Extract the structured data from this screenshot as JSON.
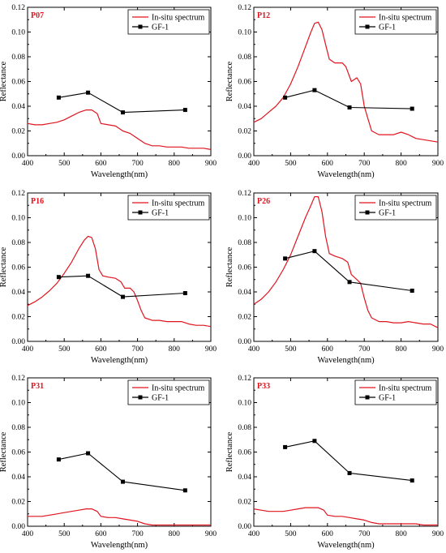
{
  "chart_data": [
    {
      "type": "line",
      "panel_label": "P07",
      "xlabel": "Wavelength(nm)",
      "ylabel": "Reflectance",
      "xlim": [
        400,
        900
      ],
      "ylim": [
        0,
        0.12
      ],
      "xticks": [
        400,
        500,
        600,
        700,
        800,
        900
      ],
      "yticks": [
        "0.00",
        "0.02",
        "0.04",
        "0.06",
        "0.08",
        "0.10",
        "0.12"
      ],
      "legend_position": "top-right",
      "series": [
        {
          "name": "In-situ spectrum",
          "color": "#e0141e",
          "marker": "none",
          "x": [
            400,
            420,
            440,
            460,
            480,
            500,
            520,
            540,
            560,
            575,
            590,
            600,
            620,
            640,
            660,
            680,
            700,
            720,
            740,
            760,
            780,
            800,
            820,
            840,
            860,
            880,
            900
          ],
          "y": [
            0.026,
            0.025,
            0.025,
            0.026,
            0.027,
            0.029,
            0.032,
            0.035,
            0.037,
            0.037,
            0.034,
            0.026,
            0.025,
            0.024,
            0.02,
            0.018,
            0.014,
            0.01,
            0.008,
            0.008,
            0.007,
            0.007,
            0.007,
            0.006,
            0.006,
            0.006,
            0.005
          ]
        },
        {
          "name": "GF-1",
          "color": "#000000",
          "marker": "square",
          "x": [
            485,
            565,
            660,
            830
          ],
          "y": [
            0.047,
            0.051,
            0.035,
            0.037
          ]
        }
      ]
    },
    {
      "type": "line",
      "panel_label": "P12",
      "xlabel": "Wavelength(nm)",
      "ylabel": "Reflectance",
      "xlim": [
        400,
        900
      ],
      "ylim": [
        0,
        0.12
      ],
      "xticks": [
        400,
        500,
        600,
        700,
        800,
        900
      ],
      "yticks": [
        "0.00",
        "0.02",
        "0.04",
        "0.06",
        "0.08",
        "0.10",
        "0.12"
      ],
      "legend_position": "top-right",
      "series": [
        {
          "name": "In-situ spectrum",
          "color": "#e0141e",
          "marker": "none",
          "x": [
            400,
            420,
            440,
            460,
            480,
            500,
            520,
            540,
            555,
            565,
            575,
            585,
            595,
            605,
            620,
            640,
            650,
            665,
            680,
            690,
            700,
            710,
            720,
            740,
            760,
            780,
            800,
            820,
            840,
            860,
            880,
            900
          ],
          "y": [
            0.027,
            0.03,
            0.035,
            0.04,
            0.047,
            0.058,
            0.072,
            0.088,
            0.1,
            0.107,
            0.108,
            0.102,
            0.09,
            0.078,
            0.075,
            0.075,
            0.072,
            0.06,
            0.063,
            0.058,
            0.04,
            0.03,
            0.02,
            0.017,
            0.017,
            0.017,
            0.019,
            0.017,
            0.014,
            0.013,
            0.012,
            0.011
          ]
        },
        {
          "name": "GF-1",
          "color": "#000000",
          "marker": "square",
          "x": [
            485,
            565,
            660,
            830
          ],
          "y": [
            0.047,
            0.053,
            0.039,
            0.038
          ]
        }
      ]
    },
    {
      "type": "line",
      "panel_label": "P16",
      "xlabel": "Wavelength(nm)",
      "ylabel": "Reflectance",
      "xlim": [
        400,
        900
      ],
      "ylim": [
        0,
        0.12
      ],
      "xticks": [
        400,
        500,
        600,
        700,
        800,
        900
      ],
      "yticks": [
        "0.00",
        "0.02",
        "0.04",
        "0.06",
        "0.08",
        "0.10",
        "0.12"
      ],
      "legend_position": "top-right",
      "series": [
        {
          "name": "In-situ spectrum",
          "color": "#e0141e",
          "marker": "none",
          "x": [
            400,
            420,
            440,
            460,
            480,
            500,
            520,
            540,
            555,
            565,
            575,
            585,
            595,
            605,
            620,
            640,
            655,
            665,
            680,
            690,
            700,
            710,
            720,
            740,
            760,
            780,
            800,
            820,
            840,
            860,
            880,
            900
          ],
          "y": [
            0.029,
            0.032,
            0.036,
            0.041,
            0.047,
            0.055,
            0.064,
            0.075,
            0.082,
            0.085,
            0.084,
            0.075,
            0.058,
            0.053,
            0.052,
            0.051,
            0.048,
            0.043,
            0.043,
            0.04,
            0.033,
            0.025,
            0.019,
            0.017,
            0.017,
            0.016,
            0.016,
            0.016,
            0.014,
            0.013,
            0.013,
            0.012
          ]
        },
        {
          "name": "GF-1",
          "color": "#000000",
          "marker": "square",
          "x": [
            485,
            565,
            660,
            830
          ],
          "y": [
            0.052,
            0.053,
            0.036,
            0.039
          ]
        }
      ]
    },
    {
      "type": "line",
      "panel_label": "P26",
      "xlabel": "Wavelength(nm)",
      "ylabel": "Reflectance",
      "xlim": [
        400,
        900
      ],
      "ylim": [
        0,
        0.12
      ],
      "xticks": [
        400,
        500,
        600,
        700,
        800,
        900
      ],
      "yticks": [
        "0.00",
        "0.02",
        "0.04",
        "0.06",
        "0.08",
        "0.10",
        "0.12"
      ],
      "legend_position": "top-right",
      "series": [
        {
          "name": "In-situ spectrum",
          "color": "#e0141e",
          "marker": "none",
          "x": [
            400,
            420,
            440,
            460,
            480,
            500,
            520,
            540,
            555,
            565,
            575,
            585,
            595,
            605,
            620,
            640,
            655,
            665,
            680,
            690,
            700,
            710,
            720,
            740,
            760,
            780,
            800,
            820,
            840,
            860,
            880,
            900
          ],
          "y": [
            0.03,
            0.034,
            0.04,
            0.048,
            0.058,
            0.07,
            0.085,
            0.1,
            0.11,
            0.117,
            0.117,
            0.105,
            0.085,
            0.071,
            0.069,
            0.067,
            0.064,
            0.054,
            0.05,
            0.047,
            0.035,
            0.025,
            0.019,
            0.016,
            0.016,
            0.015,
            0.015,
            0.016,
            0.015,
            0.014,
            0.014,
            0.011
          ]
        },
        {
          "name": "GF-1",
          "color": "#000000",
          "marker": "square",
          "x": [
            485,
            565,
            660,
            830
          ],
          "y": [
            0.067,
            0.073,
            0.048,
            0.041
          ]
        }
      ]
    },
    {
      "type": "line",
      "panel_label": "P31",
      "xlabel": "Wavelength(nm)",
      "ylabel": "Reflectance",
      "xlim": [
        400,
        900
      ],
      "ylim": [
        0,
        0.12
      ],
      "xticks": [
        400,
        500,
        600,
        700,
        800,
        900
      ],
      "yticks": [
        "0.00",
        "0.02",
        "0.04",
        "0.06",
        "0.08",
        "0.10",
        "0.12"
      ],
      "legend_position": "top-right",
      "series": [
        {
          "name": "In-situ spectrum",
          "color": "#e0141e",
          "marker": "none",
          "x": [
            400,
            420,
            440,
            460,
            480,
            500,
            520,
            540,
            560,
            575,
            590,
            600,
            620,
            640,
            660,
            680,
            700,
            720,
            740,
            760,
            780,
            800,
            820,
            840,
            860,
            880,
            900
          ],
          "y": [
            0.008,
            0.008,
            0.008,
            0.009,
            0.01,
            0.011,
            0.012,
            0.013,
            0.014,
            0.014,
            0.012,
            0.008,
            0.007,
            0.007,
            0.006,
            0.005,
            0.004,
            0.002,
            0.001,
            0.001,
            0.001,
            0.001,
            0.001,
            0.001,
            0.001,
            0.001,
            0.001
          ]
        },
        {
          "name": "GF-1",
          "color": "#000000",
          "marker": "square",
          "x": [
            485,
            565,
            660,
            830
          ],
          "y": [
            0.054,
            0.059,
            0.036,
            0.029
          ]
        }
      ]
    },
    {
      "type": "line",
      "panel_label": "P33",
      "xlabel": "Wavelength(nm)",
      "ylabel": "Reflectance",
      "xlim": [
        400,
        900
      ],
      "ylim": [
        0,
        0.12
      ],
      "xticks": [
        400,
        500,
        600,
        700,
        800,
        900
      ],
      "yticks": [
        "0.00",
        "0.02",
        "0.04",
        "0.06",
        "0.08",
        "0.10",
        "0.12"
      ],
      "legend_position": "top-right",
      "series": [
        {
          "name": "In-situ spectrum",
          "color": "#e0141e",
          "marker": "none",
          "x": [
            400,
            420,
            440,
            460,
            480,
            500,
            520,
            540,
            560,
            575,
            590,
            600,
            620,
            640,
            660,
            680,
            700,
            720,
            740,
            760,
            780,
            800,
            820,
            840,
            860,
            880,
            900
          ],
          "y": [
            0.014,
            0.013,
            0.012,
            0.012,
            0.012,
            0.013,
            0.014,
            0.015,
            0.015,
            0.015,
            0.013,
            0.009,
            0.008,
            0.008,
            0.007,
            0.006,
            0.005,
            0.003,
            0.002,
            0.002,
            0.002,
            0.002,
            0.002,
            0.002,
            0.001,
            0.001,
            0.001
          ]
        },
        {
          "name": "GF-1",
          "color": "#000000",
          "marker": "square",
          "x": [
            485,
            565,
            660,
            830
          ],
          "y": [
            0.064,
            0.069,
            0.043,
            0.037
          ]
        }
      ]
    }
  ]
}
